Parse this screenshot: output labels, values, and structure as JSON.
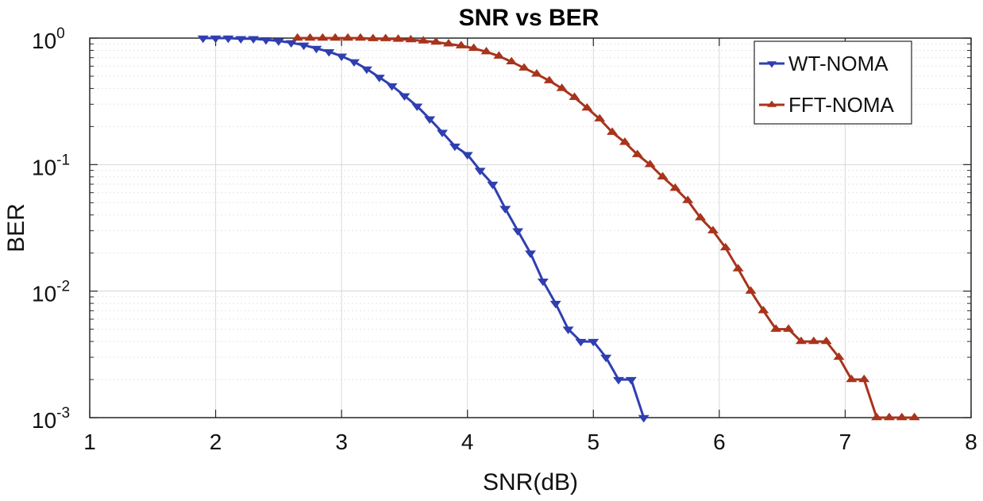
{
  "chart_data": {
    "type": "line",
    "title": "SNR vs BER",
    "xlabel": "SNR(dB)",
    "ylabel": "BER",
    "xlim": [
      1,
      8
    ],
    "ylim": [
      0.001,
      1
    ],
    "yscale": "log",
    "grid": true,
    "legend_position": "top-right",
    "x_ticks": [
      1,
      2,
      3,
      4,
      5,
      6,
      7,
      8
    ],
    "y_ticks": [
      {
        "value": 1,
        "base": "10",
        "exp": "0"
      },
      {
        "value": 0.1,
        "base": "10",
        "exp": "-1"
      },
      {
        "value": 0.01,
        "base": "10",
        "exp": "-2"
      },
      {
        "value": 0.001,
        "base": "10",
        "exp": "-3"
      }
    ],
    "series": [
      {
        "name": "WT-NOMA",
        "color": "#2f3fb0",
        "marker": "triangle-down",
        "x": [
          1.9,
          2.0,
          2.1,
          2.2,
          2.3,
          2.4,
          2.5,
          2.6,
          2.7,
          2.8,
          2.9,
          3.0,
          3.1,
          3.2,
          3.3,
          3.4,
          3.5,
          3.6,
          3.7,
          3.8,
          3.9,
          4.0,
          4.1,
          4.2,
          4.3,
          4.4,
          4.5,
          4.6,
          4.7,
          4.8,
          4.9,
          5.0,
          5.1,
          5.2,
          5.3,
          5.4
        ],
        "y": [
          1.0,
          1.0,
          1.0,
          0.99,
          0.99,
          0.97,
          0.95,
          0.92,
          0.88,
          0.83,
          0.78,
          0.72,
          0.65,
          0.57,
          0.49,
          0.42,
          0.35,
          0.29,
          0.23,
          0.18,
          0.14,
          0.12,
          0.09,
          0.07,
          0.045,
          0.03,
          0.02,
          0.012,
          0.008,
          0.005,
          0.004,
          0.004,
          0.003,
          0.002,
          0.002,
          0.001
        ]
      },
      {
        "name": "FFT-NOMA",
        "color": "#a8341c",
        "marker": "triangle-up",
        "x": [
          2.65,
          2.75,
          2.85,
          2.95,
          3.05,
          3.15,
          3.25,
          3.35,
          3.45,
          3.55,
          3.65,
          3.75,
          3.85,
          3.95,
          4.05,
          4.15,
          4.25,
          4.35,
          4.45,
          4.55,
          4.65,
          4.75,
          4.85,
          4.95,
          5.05,
          5.15,
          5.25,
          5.35,
          5.45,
          5.55,
          5.65,
          5.75,
          5.85,
          5.95,
          6.05,
          6.15,
          6.25,
          6.35,
          6.45,
          6.55,
          6.65,
          6.75,
          6.85,
          6.95,
          7.05,
          7.15,
          7.25,
          7.35,
          7.45,
          7.55
        ],
        "y": [
          1.0,
          1.0,
          1.0,
          1.0,
          1.0,
          1.0,
          0.99,
          0.99,
          0.98,
          0.97,
          0.95,
          0.93,
          0.9,
          0.87,
          0.83,
          0.78,
          0.72,
          0.65,
          0.58,
          0.52,
          0.46,
          0.4,
          0.34,
          0.28,
          0.23,
          0.18,
          0.15,
          0.12,
          0.1,
          0.08,
          0.065,
          0.052,
          0.038,
          0.03,
          0.022,
          0.015,
          0.01,
          0.007,
          0.005,
          0.005,
          0.004,
          0.004,
          0.004,
          0.003,
          0.002,
          0.002,
          0.001,
          0.001,
          0.001,
          0.001
        ]
      }
    ]
  }
}
